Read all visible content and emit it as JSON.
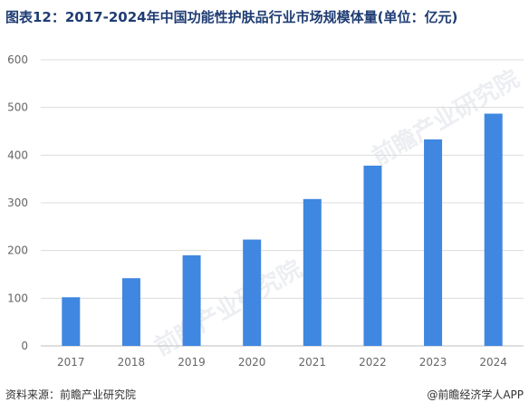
{
  "title": "图表12：2017-2024年中国功能性护肤品行业市场规模体量(单位：亿元)",
  "source": "资料来源：前瞻产业研究院",
  "brand": "@前瞻经济学人APP",
  "watermark": "前瞻产业研究院",
  "colors": {
    "bar": "#3f87e0",
    "grid": "#dcdcdc",
    "axis": "#bfbfbf",
    "tick": "#666666",
    "title": "#1f3c73"
  },
  "chart_data": {
    "type": "bar",
    "categories": [
      "2017",
      "2018",
      "2019",
      "2020",
      "2021",
      "2022",
      "2023",
      "2024"
    ],
    "values": [
      102,
      142,
      190,
      223,
      308,
      378,
      433,
      487
    ],
    "ylim": [
      0,
      600
    ],
    "yticks": [
      0,
      100,
      200,
      300,
      400,
      500,
      600
    ],
    "grid": true,
    "legend": "none"
  }
}
